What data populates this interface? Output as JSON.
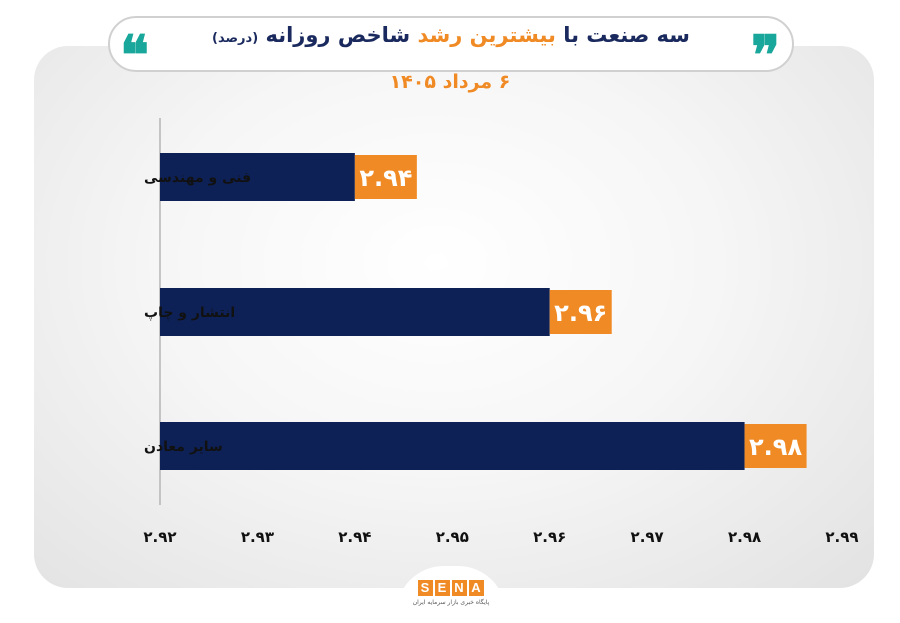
{
  "header": {
    "title_part1": "سه صنعت با",
    "title_highlight": "بیشترین رشد",
    "title_part2": "شاخص روزانه",
    "title_unit": "(درصد)",
    "date": "۶ مرداد ۱۴۰۵"
  },
  "colors": {
    "bar": "#0e2157",
    "label_bg": "#f08a24",
    "title": "#1b2a5e",
    "accent": "#f08a24",
    "quote": "#1aa79b"
  },
  "chart_data": {
    "type": "bar",
    "orientation": "horizontal",
    "categories": [
      "فنی و مهندسی",
      "انتشار و چاپ",
      "سایر معادن"
    ],
    "values": [
      2.94,
      2.96,
      2.98
    ],
    "value_labels": [
      "۲.۹۴",
      "۲.۹۶",
      "۲.۹۸"
    ],
    "xlim": [
      2.92,
      2.99
    ],
    "xticks": [
      2.92,
      2.93,
      2.94,
      2.95,
      2.96,
      2.97,
      2.98,
      2.99
    ],
    "xtick_labels": [
      "۲.۹۲",
      "۲.۹۳",
      "۲.۹۴",
      "۲.۹۵",
      "۲.۹۶",
      "۲.۹۷",
      "۲.۹۸",
      "۲.۹۹"
    ],
    "grid": false
  },
  "logo": {
    "letters": [
      "S",
      "E",
      "N",
      "A"
    ],
    "subtitle": "پایگاه خبری بازار سرمایه ایران"
  }
}
